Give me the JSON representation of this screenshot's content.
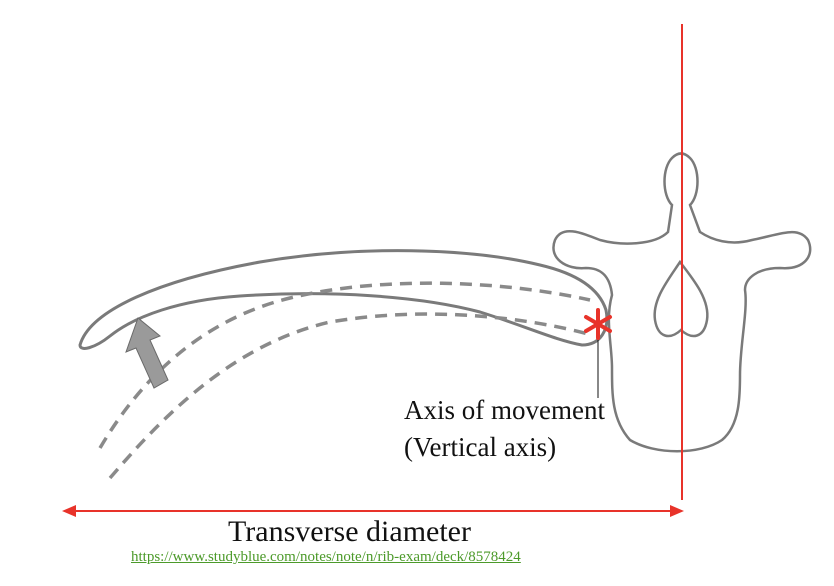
{
  "labels": {
    "axis_line1": "Axis of movement",
    "axis_line2": "(Vertical axis)",
    "transverse": "Transverse diameter"
  },
  "source_url": "https://www.studyblue.com/notes/note/n/rib-exam/deck/8578424",
  "colors": {
    "red": "#e8332a",
    "outline": "#7a7a7a",
    "dashed": "#8a8a8a",
    "arrow": "#9a9a9a",
    "link": "#4c9a2a",
    "text": "#111111"
  }
}
